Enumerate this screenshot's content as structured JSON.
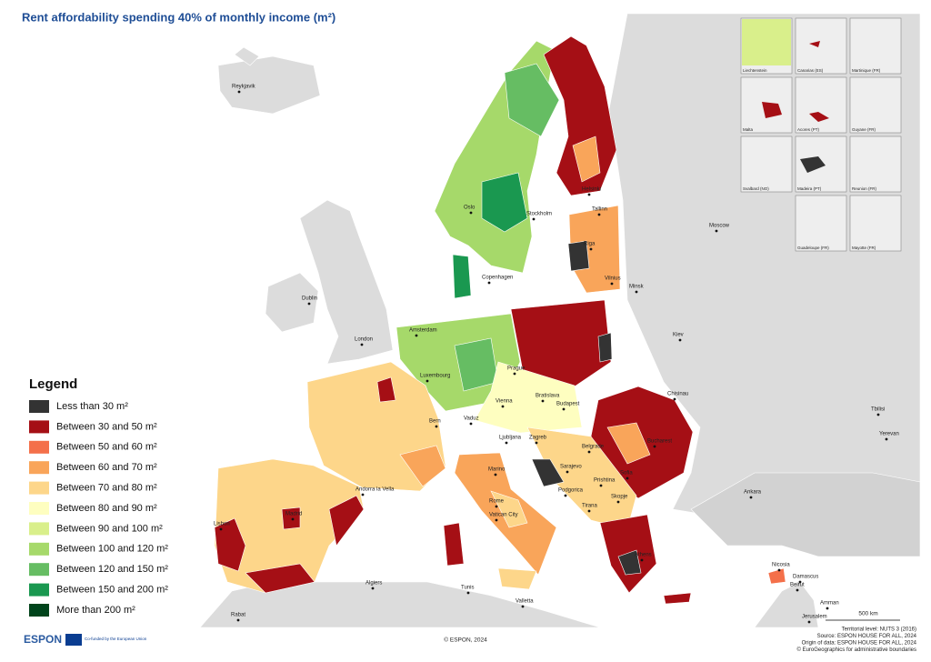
{
  "title": "Rent affordability spending 40% of monthly income (m²)",
  "legend": {
    "title": "Legend",
    "items": [
      {
        "label": "Less than 30 m²",
        "color": "#333333"
      },
      {
        "label": "Between 30 and 50 m²",
        "color": "#a50f15"
      },
      {
        "label": "Between 50 and 60 m²",
        "color": "#f4704a"
      },
      {
        "label": "Between 60 and 70 m²",
        "color": "#f9a55a"
      },
      {
        "label": "Between 70 and 80 m²",
        "color": "#fdd68a"
      },
      {
        "label": "Between 80 and 90 m²",
        "color": "#fefec0"
      },
      {
        "label": "Between 90 and 100 m²",
        "color": "#d9ef8b"
      },
      {
        "label": "Between 100 and 120 m²",
        "color": "#a6d96a"
      },
      {
        "label": "Between 120 and 150 m²",
        "color": "#66bd63"
      },
      {
        "label": "Between 150 and 200 m²",
        "color": "#1a9850"
      },
      {
        "label": "More than 200  m²",
        "color": "#00441b"
      }
    ]
  },
  "cities": [
    "Reykjavik",
    "Dublin",
    "London",
    "Oslo",
    "Stockholm",
    "Helsinki",
    "Tallinn",
    "Riga",
    "Copenhagen",
    "Vilnius",
    "Minsk",
    "Moscow",
    "Kiev",
    "Amsterdam",
    "Luxembourg",
    "Prague",
    "Vienna",
    "Bratislava",
    "Budapest",
    "Chisinau",
    "Tbilisi",
    "Yerevan",
    "Bern",
    "Vaduz",
    "Ljubljana",
    "Zagreb",
    "Belgrade",
    "Bucharest",
    "Sarajevo",
    "Podgorica",
    "Prishtina",
    "Skopje",
    "Tirana",
    "Sofia",
    "Ankara",
    "Andorra la Vella",
    "Madrid",
    "Lisbon",
    "Rome",
    "Vatican City",
    "Marino",
    "Valletta",
    "Algiers",
    "Tunis",
    "Rabat",
    "Athens",
    "Nicosia",
    "Damascus",
    "Beirut",
    "Amman",
    "Jerusalem"
  ],
  "insets": [
    "Liechtenstein",
    "Canarias (ES)",
    "Martinique (FR)",
    "Malta",
    "Acores (PT)",
    "Guyane (FR)",
    "Svalbard (NO)",
    "Madeira (PT)",
    "Reunion (FR)",
    "Guadeloupe (FR)",
    "Mayotte (FR)"
  ],
  "scale_bar": "500 km",
  "footer": {
    "logo": "ESPON",
    "eu": "Co-funded by the European Union",
    "copyright": "© ESPON, 2024",
    "credits": [
      "Territorial level: NUTS 3 (2016)",
      "Source: ESPON HOUSE FOR ALL, 2024",
      "Origin of data: ESPON HOUSE FOR ALL, 2024",
      "© EuroGeographics for administrative boundaries"
    ]
  }
}
